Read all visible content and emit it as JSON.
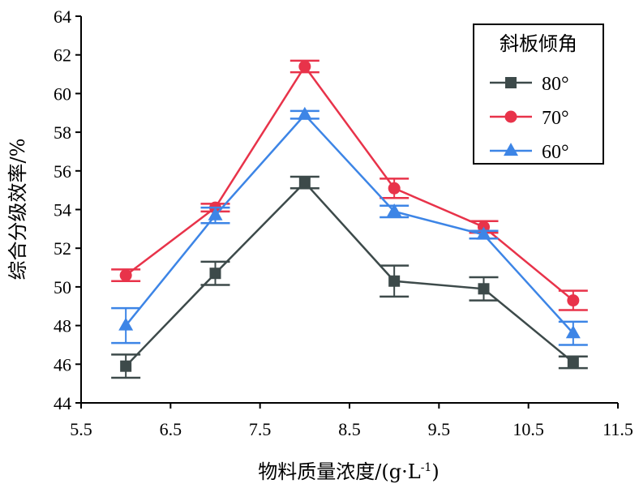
{
  "chart_data": {
    "type": "line",
    "xlabel": "物料质量浓度/(g·L",
    "xlabel_sup": "-1",
    "xlabel_end": ")",
    "ylabel": "综合分级效率/%",
    "xlim": [
      5.5,
      11.5
    ],
    "ylim": [
      44,
      64
    ],
    "xticks": [
      "5.5",
      "6.5",
      "7.5",
      "8.5",
      "9.5",
      "10.5",
      "11.5"
    ],
    "yticks": [
      "44",
      "46",
      "48",
      "50",
      "52",
      "54",
      "56",
      "58",
      "60",
      "62",
      "64"
    ],
    "x": [
      6,
      7,
      8,
      9,
      10,
      11
    ],
    "legend": {
      "title": "斜板倾角",
      "position": "top-right"
    },
    "grid": false,
    "series": [
      {
        "name": "80°",
        "marker": "square",
        "color": "#3d4a4a",
        "values": [
          45.9,
          50.7,
          55.4,
          50.3,
          49.9,
          46.1
        ],
        "errors": [
          0.6,
          0.6,
          0.3,
          0.8,
          0.6,
          0.3
        ]
      },
      {
        "name": "70°",
        "marker": "circle",
        "color": "#e8334a",
        "values": [
          50.6,
          54.1,
          61.4,
          55.1,
          53.1,
          49.3
        ],
        "errors": [
          0.3,
          0.2,
          0.3,
          0.5,
          0.3,
          0.5
        ]
      },
      {
        "name": "60°",
        "marker": "triangle",
        "color": "#3d85e6",
        "values": [
          48.0,
          53.7,
          58.9,
          53.9,
          52.7,
          47.6
        ],
        "errors": [
          0.9,
          0.4,
          0.2,
          0.3,
          0.2,
          0.6
        ]
      }
    ]
  }
}
